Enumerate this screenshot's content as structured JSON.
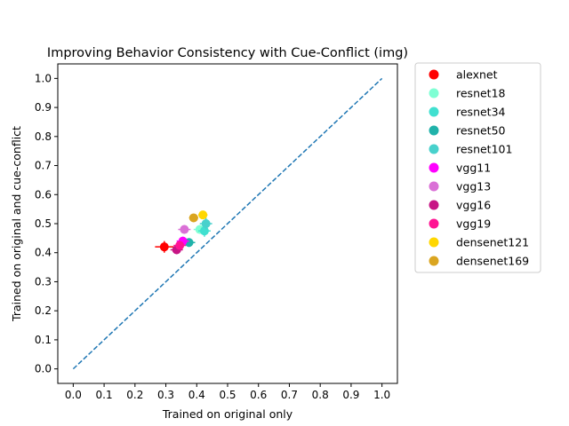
{
  "chart_data": {
    "type": "scatter",
    "title": "Improving Behavior Consistency with Cue-Conflict (img)",
    "xlabel": "Trained on original only",
    "ylabel": "Trained on original and cue-conflict",
    "xlim": [
      -0.05,
      1.05
    ],
    "ylim": [
      -0.05,
      1.05
    ],
    "xticks": [
      "0.0",
      "0.1",
      "0.2",
      "0.3",
      "0.4",
      "0.5",
      "0.6",
      "0.7",
      "0.8",
      "0.9",
      "1.0"
    ],
    "yticks": [
      "0.0",
      "0.1",
      "0.2",
      "0.3",
      "0.4",
      "0.5",
      "0.6",
      "0.7",
      "0.8",
      "0.9",
      "1.0"
    ],
    "reference_line": {
      "style": "dashed",
      "color": "#1f77b4",
      "from": [
        0,
        0
      ],
      "to": [
        1,
        1
      ]
    },
    "grid": false,
    "legend_position": "outside-right-top",
    "series": [
      {
        "name": "alexnet",
        "color": "#ff0000",
        "x": 0.295,
        "y": 0.42,
        "xerr": 0.03,
        "yerr": 0.02
      },
      {
        "name": "resnet18",
        "color": "#7fffd4",
        "x": 0.41,
        "y": 0.48,
        "xerr": 0.02,
        "yerr": 0.015
      },
      {
        "name": "resnet34",
        "color": "#40e0d0",
        "x": 0.425,
        "y": 0.475,
        "xerr": 0.02,
        "yerr": 0.02
      },
      {
        "name": "resnet50",
        "color": "#20b2aa",
        "x": 0.375,
        "y": 0.435,
        "xerr": 0.02,
        "yerr": 0.015
      },
      {
        "name": "resnet101",
        "color": "#48d1cc",
        "x": 0.43,
        "y": 0.5,
        "xerr": 0.02,
        "yerr": 0.02
      },
      {
        "name": "vgg11",
        "color": "#ff00ff",
        "x": 0.355,
        "y": 0.44,
        "xerr": 0.02,
        "yerr": 0.015
      },
      {
        "name": "vgg13",
        "color": "#da70d6",
        "x": 0.36,
        "y": 0.48,
        "xerr": 0.02,
        "yerr": 0.015
      },
      {
        "name": "vgg16",
        "color": "#c71585",
        "x": 0.335,
        "y": 0.41,
        "xerr": 0.02,
        "yerr": 0.015
      },
      {
        "name": "vgg19",
        "color": "#ff1493",
        "x": 0.345,
        "y": 0.425,
        "xerr": 0.02,
        "yerr": 0.015
      },
      {
        "name": "densenet121",
        "color": "#ffd700",
        "x": 0.42,
        "y": 0.53,
        "xerr": 0.015,
        "yerr": 0.01
      },
      {
        "name": "densenet169",
        "color": "#daa520",
        "x": 0.39,
        "y": 0.52,
        "xerr": 0.015,
        "yerr": 0.01
      }
    ]
  }
}
